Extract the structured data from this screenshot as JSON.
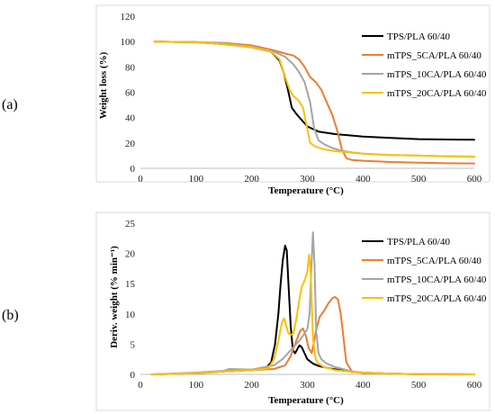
{
  "chart_data": [
    {
      "type": "line",
      "panel_label": "(a)",
      "xlabel": "Temperature (°C)",
      "ylabel": "Weight loss (%)",
      "xlim": [
        0,
        600
      ],
      "ylim": [
        0,
        120
      ],
      "xticks": [
        0,
        100,
        200,
        300,
        400,
        500,
        600
      ],
      "yticks": [
        0,
        20,
        40,
        60,
        80,
        100,
        120
      ],
      "grid": false,
      "legend_position": "top-right",
      "series": [
        {
          "name": "TPS/PLA 60/40",
          "color": "#000000",
          "x": [
            25,
            100,
            150,
            200,
            235,
            250,
            258,
            265,
            272,
            280,
            290,
            300,
            320,
            350,
            400,
            450,
            500,
            550,
            600
          ],
          "y": [
            100,
            99.5,
            98,
            95.5,
            92,
            85,
            75,
            62,
            48,
            43,
            38,
            33,
            29,
            27,
            25,
            24,
            23,
            22.7,
            22.5
          ]
        },
        {
          "name": "mTPS_5CA/PLA 60/40",
          "color": "#ed7d31",
          "x": [
            25,
            100,
            150,
            200,
            240,
            260,
            275,
            285,
            295,
            305,
            315,
            325,
            335,
            345,
            355,
            362,
            370,
            380,
            400,
            450,
            500,
            550,
            600
          ],
          "y": [
            100,
            99.5,
            99,
            97,
            93,
            90.5,
            89,
            86,
            80,
            72,
            68,
            62,
            52,
            42,
            28,
            15,
            8,
            6.5,
            6,
            5,
            4.5,
            4,
            3.8
          ]
        },
        {
          "name": "mTPS_10CA/PLA 60/40",
          "color": "#a5a5a5",
          "x": [
            25,
            100,
            150,
            200,
            240,
            260,
            275,
            285,
            295,
            305,
            312,
            320,
            330,
            345,
            360,
            380,
            400,
            450,
            500,
            550,
            600
          ],
          "y": [
            100,
            99.5,
            98.5,
            96,
            92,
            88,
            82,
            76,
            68,
            52,
            32,
            22,
            19,
            16,
            14,
            12.5,
            11.5,
            10.5,
            10,
            9.5,
            9.2
          ]
        },
        {
          "name": "mTPS_20CA/PLA 60/40",
          "color": "#ffc000",
          "x": [
            25,
            100,
            150,
            200,
            235,
            250,
            260,
            268,
            275,
            285,
            292,
            298,
            305,
            315,
            330,
            350,
            400,
            450,
            500,
            550,
            600
          ],
          "y": [
            100,
            99.5,
            98,
            95.5,
            92,
            86,
            72,
            62,
            57,
            53,
            48,
            35,
            20,
            17,
            15,
            13.5,
            11.5,
            10.5,
            10,
            9.5,
            9.2
          ]
        }
      ]
    },
    {
      "type": "line",
      "panel_label": "(b)",
      "xlabel": "Temperature (°C)",
      "ylabel": "Deriv. weight (% min⁻¹)",
      "xlim": [
        0,
        600
      ],
      "ylim": [
        0,
        25
      ],
      "xticks": [
        0,
        100,
        200,
        300,
        400,
        500,
        600
      ],
      "yticks": [
        0,
        5,
        10,
        15,
        20,
        25
      ],
      "grid": false,
      "legend_position": "top-right",
      "series": [
        {
          "name": "TPS/PLA 60/40",
          "color": "#000000",
          "x": [
            20,
            100,
            150,
            200,
            225,
            235,
            242,
            248,
            252,
            256,
            260,
            263,
            266,
            270,
            274,
            278,
            282,
            286,
            290,
            295,
            300,
            310,
            320,
            340,
            360,
            380,
            400,
            450,
            500,
            600
          ],
          "y": [
            0,
            0.2,
            0.5,
            0.7,
            1.0,
            2.0,
            5.0,
            10.0,
            15.0,
            19.0,
            21.3,
            20.5,
            15.0,
            8.0,
            4.0,
            3.5,
            4.2,
            4.8,
            4.5,
            3.5,
            2.5,
            1.8,
            1.4,
            1.0,
            0.7,
            0.4,
            0.3,
            0.1,
            0.05,
            0
          ]
        },
        {
          "name": "mTPS_5CA/PLA 60/40",
          "color": "#ed7d31",
          "x": [
            20,
            100,
            150,
            200,
            240,
            260,
            270,
            280,
            287,
            292,
            297,
            302,
            308,
            315,
            322,
            330,
            338,
            345,
            350,
            355,
            360,
            365,
            370,
            380,
            400,
            450,
            500,
            600
          ],
          "y": [
            0,
            0.2,
            0.5,
            0.7,
            0.9,
            1.5,
            3.0,
            5.5,
            7.2,
            7.6,
            6.5,
            4.5,
            3.5,
            7.0,
            9.5,
            10.5,
            11.8,
            12.6,
            12.8,
            12.4,
            10.0,
            6.0,
            2.0,
            0.5,
            0.2,
            0.1,
            0.05,
            0
          ]
        },
        {
          "name": "mTPS_10CA/PLA 60/40",
          "color": "#a5a5a5",
          "x": [
            20,
            100,
            150,
            160,
            200,
            240,
            255,
            265,
            275,
            285,
            293,
            300,
            304,
            307,
            310,
            313,
            316,
            320,
            325,
            335,
            350,
            380,
            400,
            450,
            500,
            600
          ],
          "y": [
            0,
            0.3,
            0.6,
            0.9,
            0.8,
            1.5,
            2.5,
            3.5,
            4.5,
            5.5,
            6.5,
            7.5,
            10.0,
            17.0,
            23.5,
            18.0,
            7.0,
            3.5,
            2.5,
            1.8,
            1.2,
            0.5,
            0.3,
            0.1,
            0.05,
            0
          ]
        },
        {
          "name": "mTPS_20CA/PLA 60/40",
          "color": "#ffc000",
          "x": [
            20,
            100,
            150,
            200,
            230,
            240,
            248,
            254,
            258,
            262,
            266,
            270,
            275,
            280,
            285,
            290,
            295,
            300,
            303,
            306,
            310,
            315,
            320,
            330,
            350,
            380,
            400,
            450,
            500,
            600
          ],
          "y": [
            0,
            0.2,
            0.5,
            0.7,
            1.0,
            2.5,
            5.5,
            8.5,
            9.3,
            8.0,
            6.8,
            6.5,
            6.8,
            9.0,
            12.0,
            14.5,
            15.5,
            17.0,
            19.8,
            17.0,
            6.0,
            2.5,
            1.8,
            1.2,
            0.7,
            0.4,
            0.3,
            0.1,
            0.05,
            0
          ]
        }
      ]
    }
  ]
}
